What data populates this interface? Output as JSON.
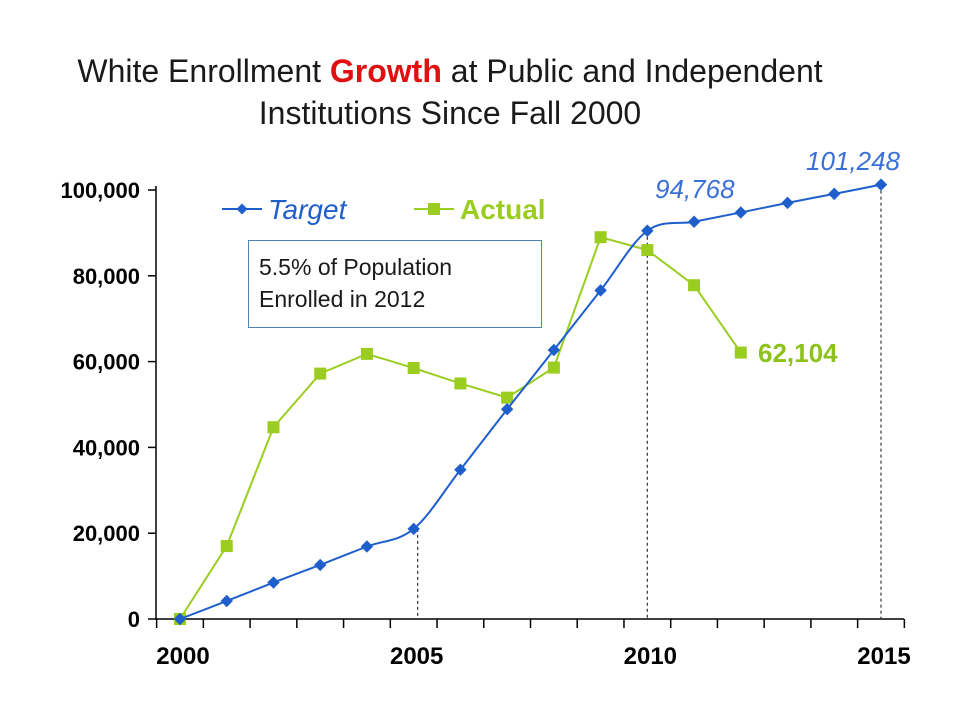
{
  "chart_data": {
    "type": "line",
    "title_parts": [
      "White Enrollment ",
      "Growth",
      " at Public and Independent Institutions Since Fall 2000"
    ],
    "xlabel": "",
    "ylabel": "",
    "xlim": [
      2000,
      2015
    ],
    "ylim": [
      0,
      100000
    ],
    "xticks": [
      "2000",
      "2005",
      "2010",
      "2015"
    ],
    "yticks": [
      "0",
      "20,000",
      "40,000",
      "60,000",
      "80,000",
      "100,000"
    ],
    "ytick_values": [
      0,
      20000,
      40000,
      60000,
      80000,
      100000
    ],
    "grid": false,
    "legend_position": "top-left",
    "series": [
      {
        "name": "Target",
        "color": "#1f5fcc",
        "marker": "diamond",
        "smooth": true,
        "x": [
          2000,
          2001,
          2002,
          2003,
          2004,
          2005,
          2006,
          2007,
          2008,
          2009,
          2010,
          2011,
          2012,
          2013,
          2014,
          2015
        ],
        "y": [
          0,
          4200,
          8500,
          12600,
          16900,
          21000,
          34800,
          48900,
          62700,
          76600,
          90500,
          92600,
          94768,
          97000,
          99100,
          101248
        ]
      },
      {
        "name": "Actual",
        "color": "#9acd1f",
        "marker": "square",
        "smooth": false,
        "x": [
          2000,
          2001,
          2002,
          2003,
          2004,
          2005,
          2006,
          2007,
          2008,
          2009,
          2010,
          2011,
          2012
        ],
        "y": [
          0,
          17000,
          44700,
          57200,
          61800,
          58500,
          54900,
          51600,
          58600,
          89000,
          86000,
          77800,
          62104
        ]
      }
    ],
    "annotations": [
      {
        "text": "94,768",
        "color": "#3b6fd8",
        "italic": true,
        "bold": false
      },
      {
        "text": "101,248",
        "color": "#3b6fd8",
        "italic": true,
        "bold": false
      },
      {
        "text": "62,104",
        "color": "#8cc21a",
        "italic": false,
        "bold": true
      }
    ],
    "reference_lines_x": [
      2005,
      2010,
      2015
    ],
    "note": [
      "5.5% of Population",
      "Enrolled in 2012"
    ]
  }
}
